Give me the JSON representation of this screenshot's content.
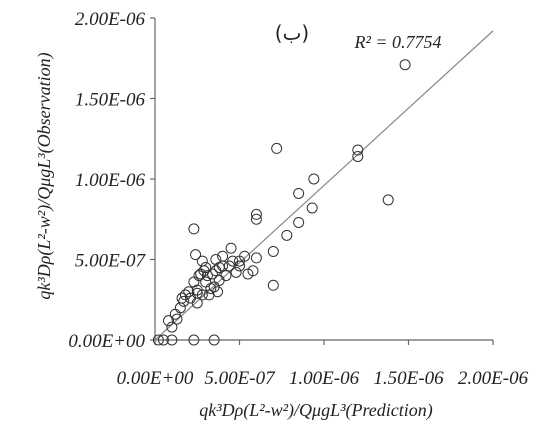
{
  "chart_data": {
    "type": "scatter",
    "panel_label": "(ب)",
    "annotation": "R² = 0.7754",
    "xlabel": "qk³Dρ(L²-w²)/QμgL³(Prediction)",
    "ylabel": "qk³Dρ(L²-w²)/QμgL³(Observation)",
    "xlim": [
      0,
      2e-06
    ],
    "ylim": [
      0,
      2e-06
    ],
    "x_ticks": [
      0,
      5e-07,
      1e-06,
      1.5e-06,
      2e-06
    ],
    "x_tick_labels": [
      "0.00E+00",
      "5.00E-07",
      "1.00E-06",
      "1.50E-06",
      "2.00E-06"
    ],
    "y_ticks": [
      0,
      5e-07,
      1e-06,
      1.5e-06,
      2e-06
    ],
    "y_tick_labels": [
      "0.00E+00",
      "5.00E-07",
      "1.00E-06",
      "1.50E-06",
      "2.00E-06"
    ],
    "grid": false,
    "trendline": {
      "x": [
        0,
        2e-06
      ],
      "y": [
        0,
        1.92e-06
      ]
    },
    "x": [
      2e-08,
      5e-08,
      8e-08,
      1e-07,
      1.2e-07,
      1.3e-07,
      1.5e-07,
      1.6e-07,
      1.7e-07,
      1.8e-07,
      2e-07,
      2.1e-07,
      2.3e-07,
      2.3e-07,
      2.4e-07,
      2.5e-07,
      2.5e-07,
      2.5e-07,
      2.6e-07,
      2.7e-07,
      2.8e-07,
      2.8e-07,
      2.9e-07,
      3e-07,
      3e-07,
      3.1e-07,
      3.2e-07,
      3.3e-07,
      3.4e-07,
      3.5e-07,
      3.6e-07,
      3.6e-07,
      3.7e-07,
      3.8e-07,
      3.8e-07,
      4e-07,
      4e-07,
      4.2e-07,
      4.4e-07,
      4.5e-07,
      4.6e-07,
      4.8e-07,
      5e-07,
      5e-07,
      5.3e-07,
      5.5e-07,
      5.8e-07,
      6e-07,
      6e-07,
      6e-07,
      7e-07,
      7e-07,
      7.2e-07,
      7.8e-07,
      8.5e-07,
      8.5e-07,
      9.3e-07,
      9.4e-07,
      1.2e-06,
      1.2e-06,
      1.38e-06,
      1.48e-06,
      1e-07,
      2.3e-07,
      3.5e-07
    ],
    "y": [
      0,
      0,
      1.2e-07,
      8e-08,
      1.6e-07,
      1.3e-07,
      2e-07,
      2.6e-07,
      2.4e-07,
      2.8e-07,
      3e-07,
      2.6e-07,
      3.6e-07,
      6.9e-07,
      5.3e-07,
      2.3e-07,
      2.9e-07,
      3.1e-07,
      4e-07,
      4.1e-07,
      2.8e-07,
      4.9e-07,
      4.3e-07,
      4.5e-07,
      3.6e-07,
      4e-07,
      2.8e-07,
      3.2e-07,
      4.1e-07,
      3.3e-07,
      4.3e-07,
      5e-07,
      3e-07,
      4.5e-07,
      3.7e-07,
      4.6e-07,
      5.2e-07,
      4e-07,
      4.6e-07,
      5.7e-07,
      4.9e-07,
      4.2e-07,
      4.6e-07,
      4.9e-07,
      5.2e-07,
      4.1e-07,
      4.3e-07,
      5.1e-07,
      7.5e-07,
      7.8e-07,
      3.4e-07,
      5.5e-07,
      1.19e-06,
      6.5e-07,
      7.3e-07,
      9.1e-07,
      8.2e-07,
      1e-06,
      1.14e-06,
      1.18e-06,
      8.7e-07,
      1.71e-06,
      0,
      0,
      0
    ]
  }
}
